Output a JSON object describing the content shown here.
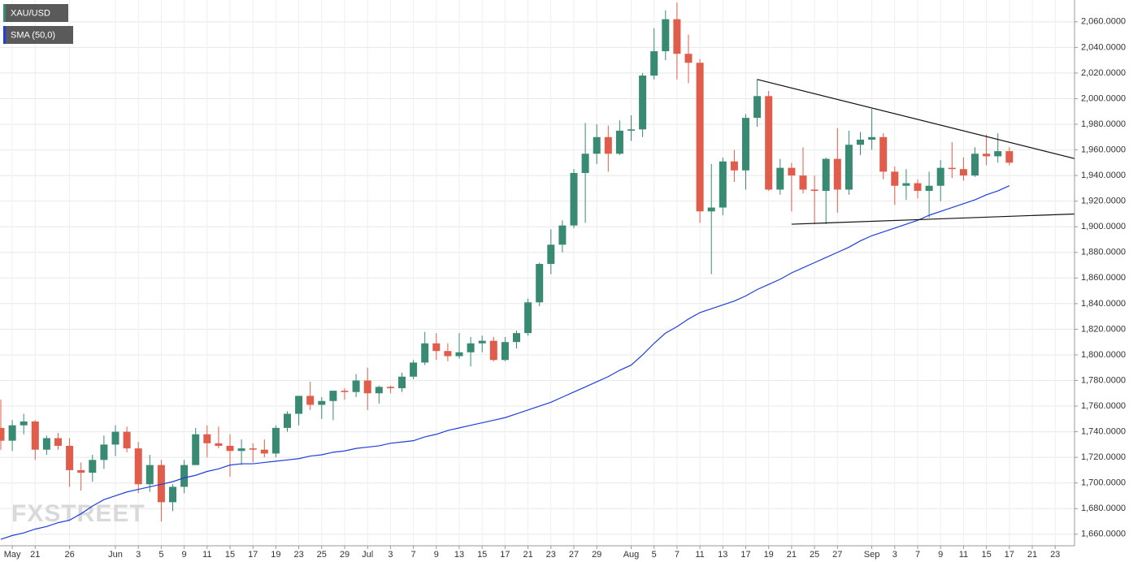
{
  "chart_data": {
    "type": "candlestick",
    "categories": [
      null,
      "May",
      null,
      "21",
      null,
      null,
      "26",
      null,
      null,
      null,
      "Jun",
      null,
      "3",
      null,
      "5",
      null,
      "9",
      null,
      "11",
      null,
      "15",
      null,
      "17",
      null,
      "19",
      null,
      "23",
      null,
      "25",
      null,
      "29",
      null,
      "Jul",
      null,
      "3",
      null,
      "7",
      null,
      "9",
      null,
      "13",
      null,
      "15",
      null,
      "17",
      null,
      "21",
      null,
      "23",
      null,
      "27",
      null,
      "29",
      null,
      null,
      "Aug",
      null,
      "5",
      null,
      "7",
      null,
      "11",
      null,
      "13",
      null,
      "17",
      null,
      "19",
      null,
      "21",
      null,
      "25",
      null,
      "27",
      null,
      null,
      "Sep",
      null,
      "3",
      null,
      "7",
      null,
      "9",
      null,
      "11",
      null,
      "15",
      null,
      "17",
      null,
      "21",
      null,
      "23"
    ],
    "ohlc": {
      "name": "XAU/USD",
      "up_color": "#388a72",
      "down_color": "#e05c4b",
      "open": [
        1743,
        1733,
        1745,
        1748,
        1726,
        1735,
        1729,
        1710,
        1708,
        1718,
        1730,
        1740,
        1727,
        1699,
        1714,
        1685,
        1697,
        1714,
        1738,
        1731,
        1729,
        1725,
        1727,
        1726,
        1723,
        1743,
        1754,
        1768,
        1761,
        1764,
        1772,
        1771,
        1780,
        1770,
        1775,
        1774,
        1783,
        1794,
        1809,
        1803,
        1799,
        1802,
        1809,
        1811,
        1796,
        1810,
        1817,
        1841,
        1871,
        1886,
        1901,
        1942,
        1957,
        1970,
        1957,
        1975,
        1976,
        2018,
        2037,
        2062,
        2035,
        2028,
        1912,
        1915,
        1951,
        1944,
        1985,
        2002,
        1929,
        1946,
        1940,
        1929,
        1928,
        1953,
        1929,
        1964,
        1968,
        1970,
        1943,
        1932,
        1934,
        1928,
        1932,
        1946,
        1945,
        1940,
        1957,
        1955,
        1959,
        null,
        null,
        null,
        null
      ],
      "high": [
        1765,
        1749,
        1754,
        1749,
        1737,
        1739,
        1735,
        1716,
        1722,
        1737,
        1745,
        1744,
        1732,
        1722,
        1718,
        1699,
        1718,
        1743,
        1745,
        1744,
        1738,
        1734,
        1731,
        1734,
        1745,
        1756,
        1768,
        1779,
        1767,
        1772,
        1774,
        1785,
        1790,
        1776,
        1776,
        1786,
        1796,
        1818,
        1817,
        1809,
        1817,
        1814,
        1815,
        1814,
        1814,
        1819,
        1844,
        1872,
        1898,
        1905,
        1945,
        1981,
        1980,
        1979,
        1983,
        1987,
        2020,
        2055,
        2069,
        2075,
        2050,
        2031,
        1949,
        1954,
        1960,
        1988,
        2015,
        2006,
        1953,
        1950,
        1962,
        1940,
        1954,
        1977,
        1975,
        1974,
        1992,
        1973,
        1947,
        1945,
        1937,
        1943,
        1952,
        1966,
        1954,
        1962,
        1972,
        1973,
        1962,
        null,
        null,
        null,
        null
      ],
      "low": [
        1726,
        1725,
        1738,
        1718,
        1722,
        1726,
        1697,
        1694,
        1701,
        1711,
        1721,
        1724,
        1692,
        1693,
        1670,
        1678,
        1692,
        1714,
        1720,
        1727,
        1705,
        1714,
        1716,
        1720,
        1720,
        1740,
        1745,
        1757,
        1750,
        1749,
        1765,
        1767,
        1757,
        1762,
        1770,
        1771,
        1781,
        1792,
        1796,
        1795,
        1797,
        1791,
        1802,
        1795,
        1795,
        1805,
        1815,
        1838,
        1863,
        1880,
        1899,
        1903,
        1949,
        1943,
        1956,
        1967,
        1970,
        2015,
        2030,
        2015,
        2012,
        1903,
        1863,
        1909,
        1935,
        1929,
        1978,
        1928,
        1925,
        1912,
        1926,
        1902,
        1902,
        1911,
        1925,
        1956,
        1960,
        1937,
        1917,
        1921,
        1922,
        1907,
        1920,
        1938,
        1936,
        1939,
        1948,
        1950,
        1948,
        null,
        null,
        null,
        null
      ],
      "close": [
        1733,
        1745,
        1748,
        1726,
        1735,
        1729,
        1710,
        1708,
        1718,
        1730,
        1740,
        1727,
        1699,
        1714,
        1685,
        1697,
        1714,
        1738,
        1731,
        1729,
        1725,
        1727,
        1726,
        1723,
        1743,
        1754,
        1768,
        1761,
        1764,
        1772,
        1771,
        1780,
        1770,
        1775,
        1774,
        1783,
        1794,
        1809,
        1803,
        1799,
        1802,
        1809,
        1811,
        1796,
        1810,
        1817,
        1841,
        1871,
        1886,
        1901,
        1942,
        1957,
        1970,
        1957,
        1975,
        1976,
        2018,
        2037,
        2062,
        2035,
        2028,
        1912,
        1915,
        1951,
        1944,
        1985,
        2002,
        1929,
        1946,
        1940,
        1929,
        1928,
        1953,
        1929,
        1964,
        1968,
        1970,
        1943,
        1932,
        1934,
        1928,
        1932,
        1946,
        1945,
        1940,
        1957,
        1955,
        1959,
        1950,
        null,
        null,
        null,
        null
      ]
    },
    "overlays": [
      {
        "type": "line",
        "name": "SMA (50,0)",
        "color": "#1f3fd9",
        "values": [
          1656,
          1659,
          1661,
          1664,
          1666,
          1669,
          1671,
          1676,
          1682,
          1687,
          1690,
          1693,
          1695,
          1697,
          1699,
          1701,
          1704,
          1706,
          1709,
          1711,
          1714,
          1715,
          1715,
          1716,
          1717,
          1718,
          1719,
          1721,
          1722,
          1724,
          1725,
          1727,
          1728,
          1729,
          1731,
          1732,
          1733,
          1736,
          1738,
          1741,
          1743,
          1745,
          1747,
          1749,
          1751,
          1754,
          1757,
          1760,
          1763,
          1767,
          1771,
          1775,
          1779,
          1783,
          1788,
          1792,
          1800,
          1809,
          1817,
          1822,
          1828,
          1833,
          1836,
          1839,
          1842,
          1846,
          1851,
          1855,
          1859,
          1864,
          1868,
          1872,
          1876,
          1880,
          1884,
          1889,
          1893,
          1896,
          1899,
          1902,
          1905,
          1909,
          1912,
          1915,
          1918,
          1921,
          1925,
          1928,
          1932,
          null,
          null,
          null,
          null
        ]
      }
    ],
    "trendlines": [
      {
        "x": [
          66,
          93.8
        ],
        "y": [
          2015,
          1953
        ],
        "color": "#111111"
      },
      {
        "x": [
          69,
          93.8
        ],
        "y": [
          1902,
          1910
        ],
        "color": "#111111"
      }
    ],
    "ylim": [
      1651,
      2077
    ],
    "yticks": [
      {
        "value": 1660,
        "label": "1,660.0000"
      },
      {
        "value": 1680,
        "label": "1,680.0000"
      },
      {
        "value": 1700,
        "label": "1,700.0000"
      },
      {
        "value": 1720,
        "label": "1,720.0000"
      },
      {
        "value": 1740,
        "label": "1,740.0000"
      },
      {
        "value": 1760,
        "label": "1,760.0000"
      },
      {
        "value": 1780,
        "label": "1,780.0000"
      },
      {
        "value": 1800,
        "label": "1,800.0000"
      },
      {
        "value": 1820,
        "label": "1,820.0000"
      },
      {
        "value": 1840,
        "label": "1,840.0000"
      },
      {
        "value": 1860,
        "label": "1,860.0000"
      },
      {
        "value": 1880,
        "label": "1,880.0000"
      },
      {
        "value": 1900,
        "label": "1,900.0000"
      },
      {
        "value": 1920,
        "label": "1,920.0000"
      },
      {
        "value": 1940,
        "label": "1,940.0000"
      },
      {
        "value": 1960,
        "label": "1,960.0000"
      },
      {
        "value": 1980,
        "label": "1,980.0000"
      },
      {
        "value": 2000,
        "label": "2,000.0000"
      },
      {
        "value": 2020,
        "label": "2,020.0000"
      },
      {
        "value": 2040,
        "label": "2,040.0000"
      },
      {
        "value": 2060,
        "label": "2,060.0000"
      }
    ],
    "grid": true,
    "watermark": "FXSTREET"
  }
}
